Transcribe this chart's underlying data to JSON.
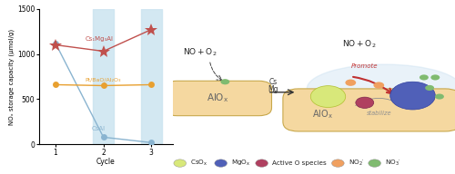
{
  "cycles": [
    1,
    2,
    3
  ],
  "cs_mg_al": [
    1100,
    1030,
    1270
  ],
  "pt_bao_al2o3": [
    660,
    650,
    660
  ],
  "csal": [
    1120,
    80,
    20
  ],
  "cs_mg_al_color": "#c0504d",
  "pt_bao_color": "#e8a030",
  "csal_color": "#8ab4d0",
  "highlight_color": "#cce4f0",
  "ylabel": "NOₓ storage capacity (μmol/g)",
  "xlabel": "Cycle",
  "ylim": [
    0,
    1500
  ],
  "yticks": [
    0,
    500,
    1000,
    1500
  ],
  "xticks": [
    1,
    2,
    3
  ],
  "label_csmgal": "Cs₁Mg₃Al",
  "label_pt": "Pt/BaO/Al₂O₃",
  "label_csal": "CsAl",
  "bg_color": "#ffffff",
  "alox_color": "#f5d8a0",
  "alox_edge": "#c8a84b",
  "csox_color": "#d8e87a",
  "mgox_color": "#5060b8",
  "active_o_color": "#b04060",
  "no2_color": "#f0a060",
  "no3_color": "#80bb70",
  "promote_color": "#c03030",
  "stabilize_color": "#909090"
}
